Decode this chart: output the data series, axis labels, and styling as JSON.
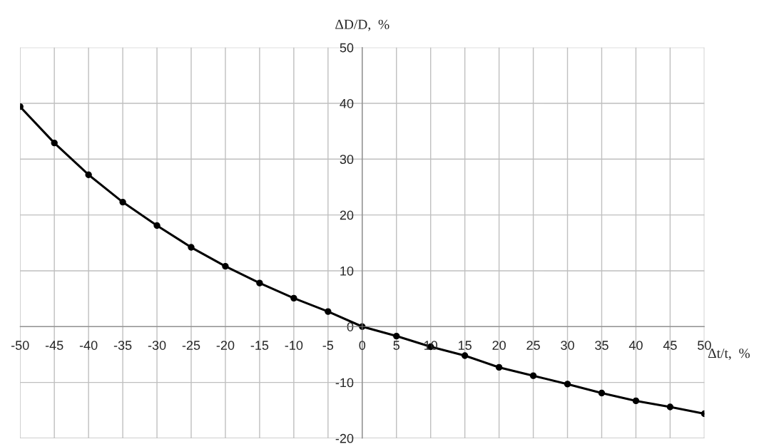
{
  "chart_data": {
    "type": "line",
    "xlabel": "Δt/t,  %",
    "ylabel": "ΔD/D,  %",
    "x": [
      -50,
      -45,
      -40,
      -35,
      -30,
      -25,
      -20,
      -15,
      -10,
      -5,
      0,
      5,
      10,
      15,
      20,
      25,
      30,
      35,
      40,
      45,
      50
    ],
    "series": [
      {
        "color": "#000000",
        "values": [
          39.4,
          32.9,
          27.2,
          22.3,
          18.1,
          14.2,
          10.8,
          7.8,
          5.1,
          2.7,
          0,
          -1.7,
          -3.6,
          -5.2,
          -7.3,
          -8.8,
          -10.3,
          -11.9,
          -13.3,
          -14.4,
          -15.6
        ]
      }
    ],
    "xlim": [
      -50,
      50
    ],
    "ylim": [
      -20,
      50
    ],
    "xticks": [
      -50,
      -45,
      -40,
      -35,
      -30,
      -25,
      -20,
      -15,
      -10,
      -5,
      0,
      5,
      10,
      15,
      20,
      25,
      30,
      35,
      40,
      45,
      50
    ],
    "yticks": [
      -20,
      -10,
      0,
      10,
      20,
      30,
      40,
      50
    ],
    "grid": true,
    "marker": "circle",
    "line_style": "solid",
    "legend": false
  }
}
